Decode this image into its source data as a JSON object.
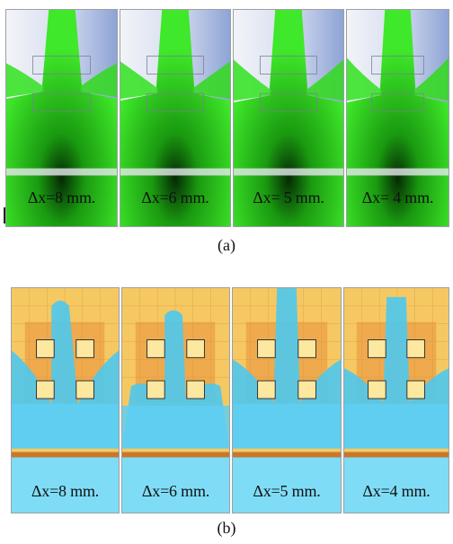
{
  "figure_a": {
    "caption": "(a)",
    "panels": [
      {
        "label": "Δx=8 mm."
      },
      {
        "label": "Δx=6 mm."
      },
      {
        "label": "Δx= 5 mm."
      },
      {
        "label": "Δx= 4 mm."
      }
    ],
    "colors": {
      "fluid": "#2fdc1e",
      "fluid_dark": "#0a6a08",
      "background_left": "#eef1f7",
      "background_right": "#9fb2dc"
    }
  },
  "figure_b": {
    "caption": "(b)",
    "panels": [
      {
        "label": "Δx=8 mm."
      },
      {
        "label": "Δx=6 mm."
      },
      {
        "label": "Δx=5 mm."
      },
      {
        "label": "Δx=4 mm."
      }
    ],
    "colors": {
      "fluid": "#4ec8f0",
      "fluid_dark": "#2a8fc8",
      "background": "#f6c862",
      "background_dark": "#e8923a",
      "block": "#fde8a0"
    }
  }
}
